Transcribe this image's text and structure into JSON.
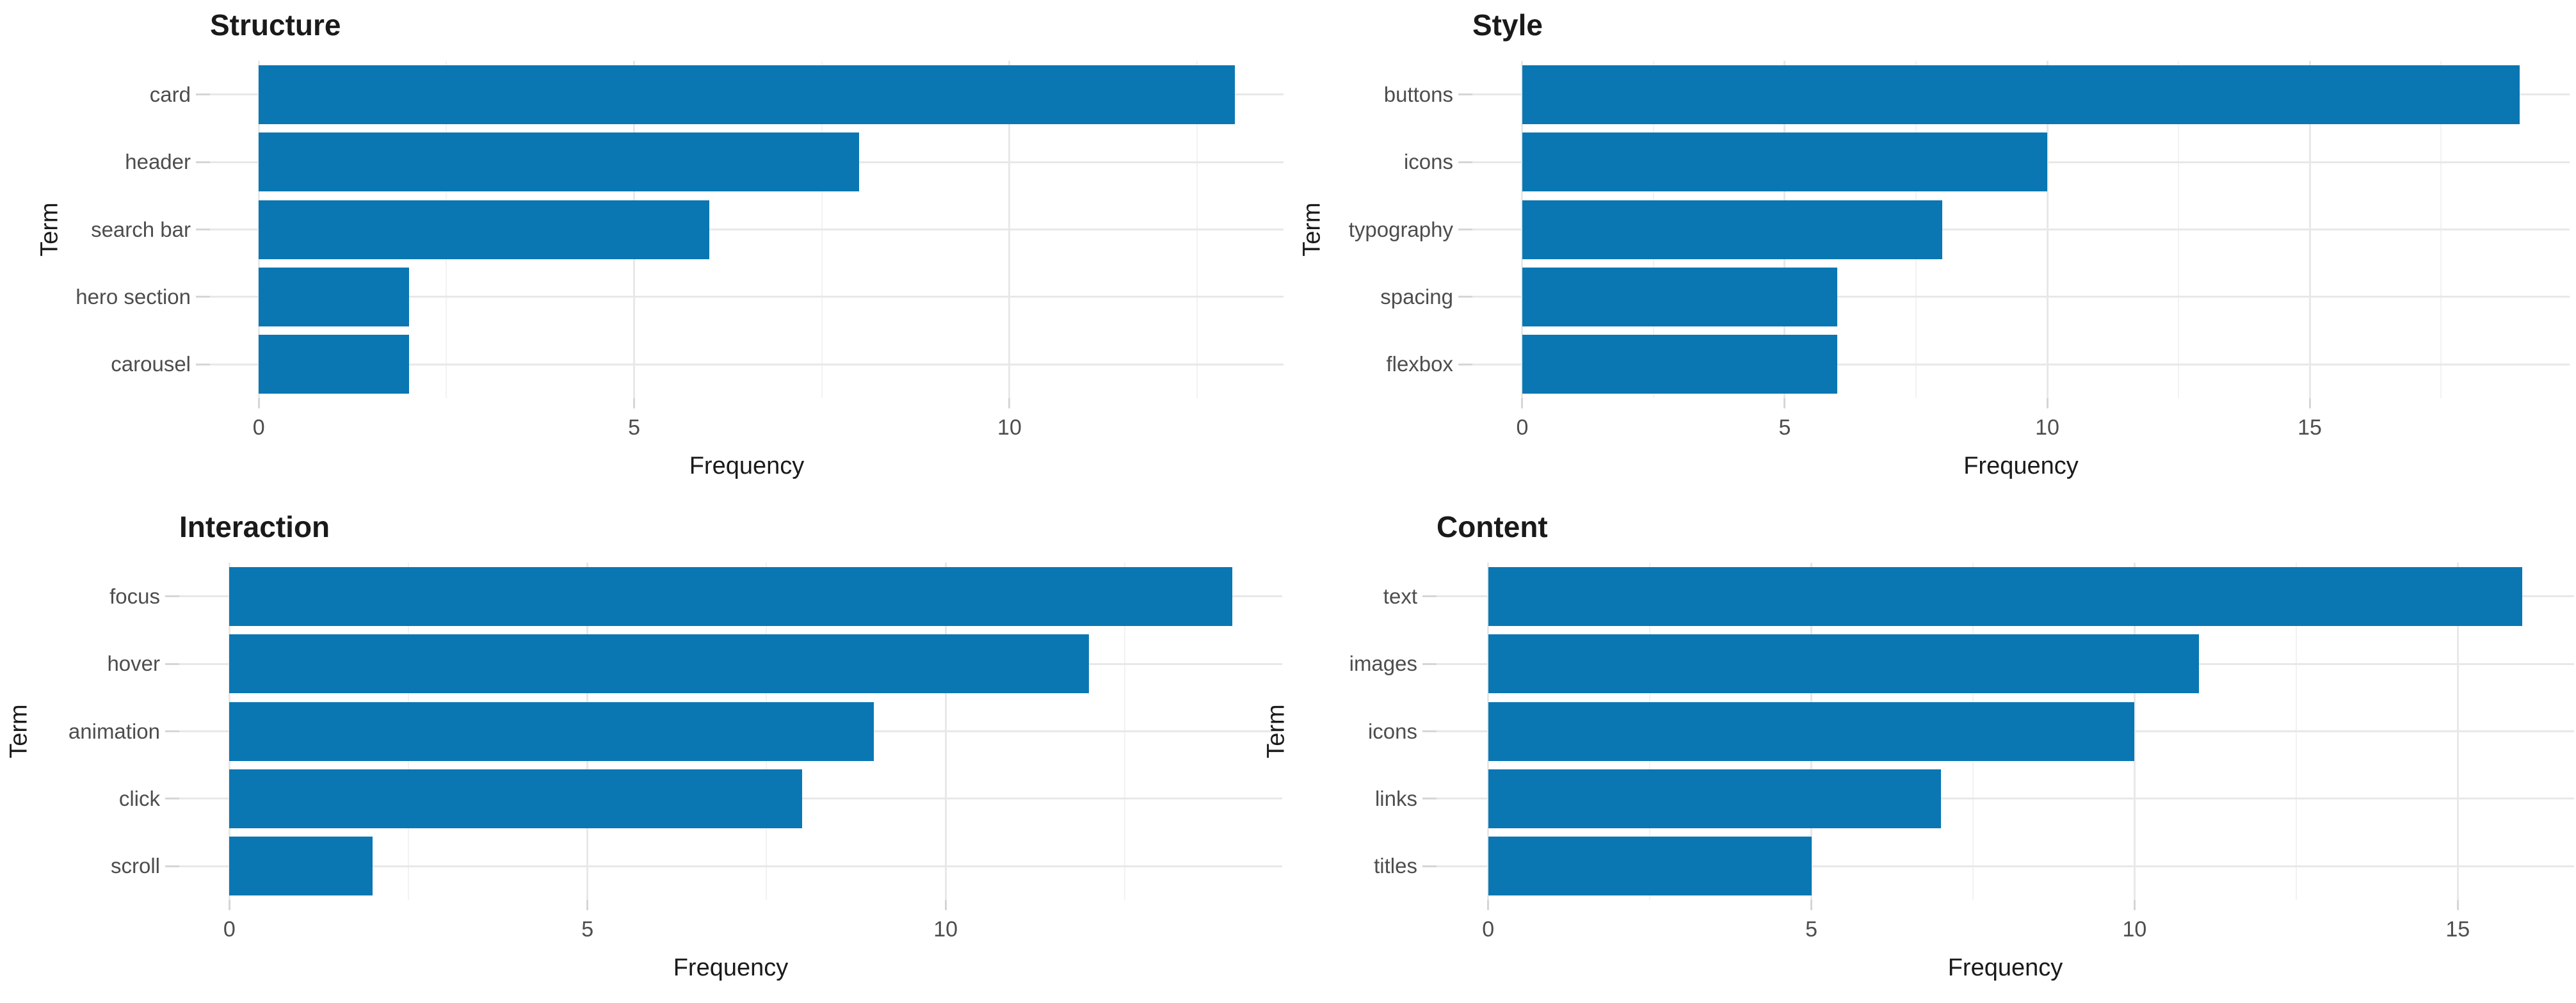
{
  "figure": {
    "background_color": "#ffffff",
    "bar_color": "#0a77b3",
    "major_grid_color": "#e8e8e8",
    "minor_grid_color": "#f2f2f2",
    "tick_mark_color": "#d6d6d6",
    "tick_label_color": "#4d4d4d",
    "title_color": "#1a1a1a",
    "panel_titles": [
      "Structure",
      "Style",
      "Interaction",
      "Content"
    ]
  },
  "chart_data": [
    {
      "type": "bar",
      "orientation": "horizontal",
      "title": "Structure",
      "xlabel": "Frequency",
      "ylabel": "Term",
      "categories": [
        "card",
        "header",
        "search bar",
        "hero section",
        "carousel"
      ],
      "values": [
        13,
        8,
        6,
        2,
        2
      ],
      "x_ticks": [
        0,
        5,
        10
      ],
      "x_minor_ticks": [
        2.5,
        7.5,
        12.5
      ],
      "xlim": [
        -0.65,
        13.65
      ],
      "grid": true,
      "legend": false
    },
    {
      "type": "bar",
      "orientation": "horizontal",
      "title": "Style",
      "xlabel": "Frequency",
      "ylabel": "Term",
      "categories": [
        "buttons",
        "icons",
        "typography",
        "spacing",
        "flexbox"
      ],
      "values": [
        19,
        10,
        8,
        6,
        6
      ],
      "x_ticks": [
        0,
        5,
        10,
        15
      ],
      "x_minor_ticks": [
        2.5,
        7.5,
        12.5,
        17.5
      ],
      "xlim": [
        -0.95,
        19.95
      ],
      "grid": true,
      "legend": false
    },
    {
      "type": "bar",
      "orientation": "horizontal",
      "title": "Interaction",
      "xlabel": "Frequency",
      "ylabel": "Term",
      "categories": [
        "focus",
        "hover",
        "animation",
        "click",
        "scroll"
      ],
      "values": [
        14,
        12,
        9,
        8,
        2
      ],
      "x_ticks": [
        0,
        5,
        10
      ],
      "x_minor_ticks": [
        2.5,
        7.5,
        12.5
      ],
      "xlim": [
        -0.7,
        14.7
      ],
      "grid": true,
      "legend": false
    },
    {
      "type": "bar",
      "orientation": "horizontal",
      "title": "Content",
      "xlabel": "Frequency",
      "ylabel": "Term",
      "categories": [
        "text",
        "images",
        "icons",
        "links",
        "titles"
      ],
      "values": [
        16,
        11,
        10,
        7,
        5
      ],
      "x_ticks": [
        0,
        5,
        10,
        15
      ],
      "x_minor_ticks": [
        2.5,
        7.5,
        12.5
      ],
      "xlim": [
        -0.8,
        16.8
      ],
      "grid": true,
      "legend": false
    }
  ]
}
